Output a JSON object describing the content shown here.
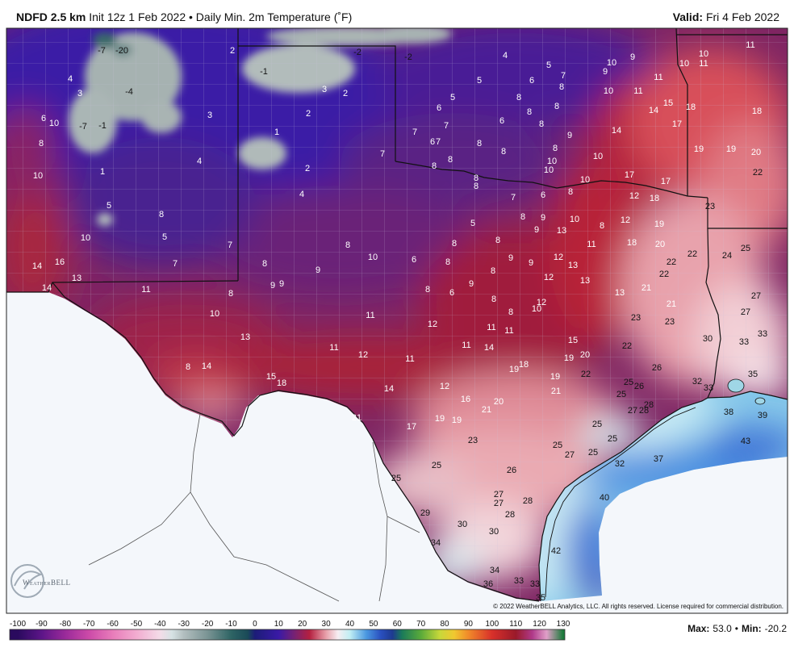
{
  "header": {
    "model": "NDFD 2.5 km",
    "description": "Init 12z 1 Feb 2022 • Daily Min. 2m Temperature (˚F)",
    "valid_label": "Valid:",
    "valid_date": "Fri 4 Feb 2022"
  },
  "map": {
    "labels": [
      "-7",
      "-20",
      "2",
      "-2",
      "-2",
      "4",
      "5",
      "10",
      "9",
      "10",
      "11",
      "10",
      "11",
      "4",
      "-1",
      "9",
      "7",
      "6",
      "5",
      "11",
      "3",
      "-4",
      "3",
      "2",
      "8",
      "10",
      "11",
      "5",
      "8",
      "15",
      "3",
      "2",
      "6",
      "8",
      "14",
      "18",
      "18",
      "6",
      "10",
      "-7",
      "-1",
      "6",
      "8",
      "7",
      "8",
      "17",
      "14",
      "1",
      "7",
      "9",
      "8",
      "6",
      "7",
      "8",
      "8",
      "19",
      "19",
      "20",
      "7",
      "8",
      "8",
      "10",
      "4",
      "10",
      "8",
      "2",
      "10",
      "1",
      "10",
      "22",
      "8",
      "8",
      "10",
      "17",
      "17",
      "8",
      "4",
      "7",
      "6",
      "12",
      "18",
      "23",
      "5",
      "8",
      "8",
      "9",
      "10",
      "8",
      "12",
      "19",
      "5",
      "9",
      "13",
      "10",
      "5",
      "7",
      "8",
      "8",
      "8",
      "11",
      "18",
      "20",
      "25",
      "22",
      "24",
      "10",
      "6",
      "9",
      "9",
      "12",
      "14",
      "16",
      "7",
      "8",
      "9",
      "8",
      "13",
      "22",
      "8",
      "12",
      "13",
      "22",
      "14",
      "13",
      "9",
      "9",
      "11",
      "8",
      "8",
      "6",
      "9",
      "21",
      "13",
      "27",
      "8",
      "12",
      "21",
      "8",
      "10",
      "10",
      "11",
      "23",
      "27",
      "23",
      "12",
      "11",
      "11",
      "33",
      "13",
      "15",
      "30",
      "33",
      "11",
      "11",
      "14",
      "22",
      "12",
      "20",
      "11",
      "19",
      "8",
      "14",
      "18",
      "19",
      "26",
      "22",
      "35",
      "15",
      "18",
      "19",
      "25",
      "26",
      "32",
      "33",
      "12",
      "14",
      "21",
      "25",
      "16",
      "20",
      "21",
      "28",
      "27",
      "28",
      "38",
      "39",
      "21",
      "19",
      "19",
      "17",
      "25",
      "23",
      "25",
      "43",
      "25",
      "27",
      "25",
      "37",
      "32",
      "25",
      "26",
      "25",
      "27",
      "28",
      "27",
      "40",
      "29",
      "28",
      "30",
      "30",
      "34",
      "42",
      "34",
      "36",
      "33",
      "33",
      "35"
    ]
  },
  "copyright": "© 2022 WeatherBELL Analytics, LLC. All rights reserved. License required for commercial distribution.",
  "logo_text": "WeatherBELL",
  "colorbar": {
    "ticks": [
      "-100",
      "-90",
      "-80",
      "-70",
      "-60",
      "-50",
      "-40",
      "-30",
      "-20",
      "-10",
      "0",
      "10",
      "20",
      "30",
      "40",
      "50",
      "60",
      "70",
      "80",
      "90",
      "100",
      "110",
      "120",
      "130"
    ],
    "stops": [
      {
        "value": -100,
        "color": "#2a0a5e"
      },
      {
        "value": -90,
        "color": "#5c1588"
      },
      {
        "value": -80,
        "color": "#9a2a9a"
      },
      {
        "value": -70,
        "color": "#cc4aa8"
      },
      {
        "value": -60,
        "color": "#e87cba"
      },
      {
        "value": -50,
        "color": "#f2acd0"
      },
      {
        "value": -40,
        "color": "#f3dce8"
      },
      {
        "value": -35,
        "color": "#d6e2e4"
      },
      {
        "value": -30,
        "color": "#b2bebf"
      },
      {
        "value": -20,
        "color": "#7a9494"
      },
      {
        "value": -10,
        "color": "#2e6464"
      },
      {
        "value": -3,
        "color": "#1a4a58"
      },
      {
        "value": 0,
        "color": "#1c1c78"
      },
      {
        "value": 10,
        "color": "#3a1aa6"
      },
      {
        "value": 17,
        "color": "#7a2270"
      },
      {
        "value": 23,
        "color": "#b42040"
      },
      {
        "value": 30,
        "color": "#e8a0aa"
      },
      {
        "value": 35,
        "color": "#f6eef2"
      },
      {
        "value": 40,
        "color": "#c2eef4"
      },
      {
        "value": 47,
        "color": "#4a98e0"
      },
      {
        "value": 53,
        "color": "#2a50c0"
      },
      {
        "value": 58,
        "color": "#1e3a90"
      },
      {
        "value": 62,
        "color": "#1a7a5a"
      },
      {
        "value": 70,
        "color": "#5aaa3a"
      },
      {
        "value": 78,
        "color": "#c8d83a"
      },
      {
        "value": 84,
        "color": "#f0c830"
      },
      {
        "value": 90,
        "color": "#f08a2a"
      },
      {
        "value": 100,
        "color": "#d8302a"
      },
      {
        "value": 110,
        "color": "#9a1a2a"
      },
      {
        "value": 117,
        "color": "#b03a8a"
      },
      {
        "value": 123,
        "color": "#e0a0c8"
      },
      {
        "value": 130,
        "color": "#1a7a3a"
      }
    ]
  },
  "stats": {
    "max_label": "Max:",
    "max_value": "53.0",
    "separator": "•",
    "min_label": "Min:",
    "min_value": "-20.2"
  }
}
